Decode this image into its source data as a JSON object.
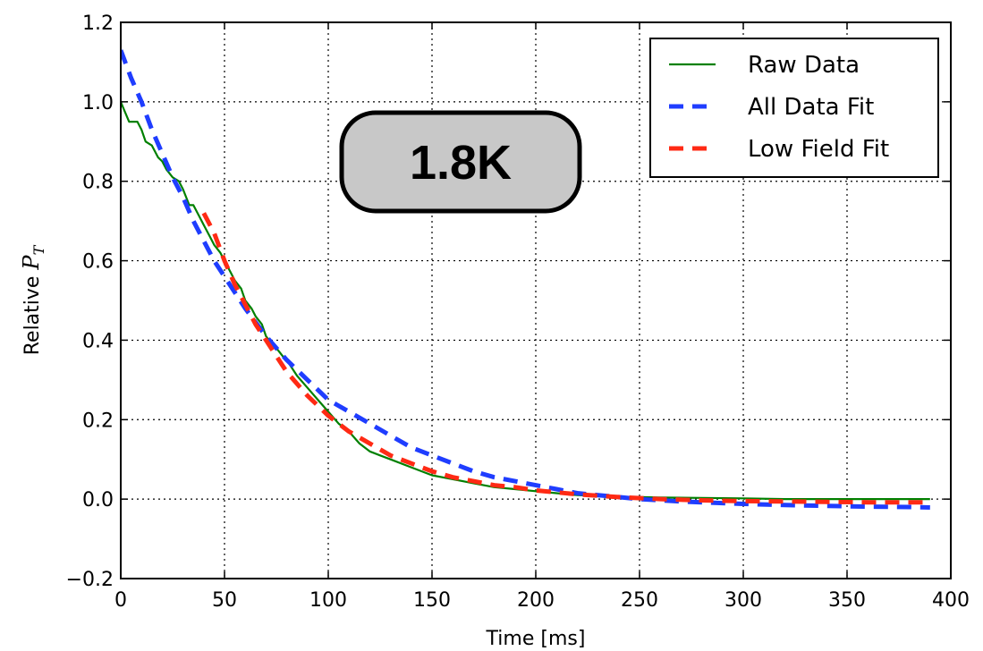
{
  "chart_data": {
    "type": "line",
    "title": "",
    "xlabel": "Time [ms]",
    "ylabel": "Relative P_T",
    "ylabel_parts": {
      "prefix": "Relative ",
      "symbol": "P",
      "subscript": "T"
    },
    "xlim": [
      0,
      400
    ],
    "ylim": [
      -0.2,
      1.2
    ],
    "x_ticks": [
      0,
      50,
      100,
      150,
      200,
      250,
      300,
      350,
      400
    ],
    "x_tick_labels": [
      "0",
      "50",
      "100",
      "150",
      "200",
      "250",
      "300",
      "350",
      "400"
    ],
    "y_ticks": [
      -0.2,
      0.0,
      0.2,
      0.4,
      0.6,
      0.8,
      1.0,
      1.2
    ],
    "y_tick_labels": [
      "−0.2",
      "0.0",
      "0.2",
      "0.4",
      "0.6",
      "0.8",
      "1.0",
      "1.2"
    ],
    "grid": true,
    "legend_position": "top-right",
    "annotation": "1.8K",
    "series": [
      {
        "name": "Raw Data",
        "color": "#008000",
        "style": "solid",
        "x": [
          0,
          4,
          6,
          8,
          10,
          12,
          15,
          18,
          20,
          22,
          25,
          28,
          30,
          33,
          35,
          38,
          40,
          43,
          45,
          48,
          50,
          53,
          55,
          58,
          60,
          63,
          65,
          68,
          70,
          73,
          75,
          78,
          80,
          85,
          90,
          95,
          100,
          105,
          110,
          115,
          120,
          125,
          130,
          140,
          150,
          160,
          170,
          180,
          190,
          200,
          210,
          220,
          230,
          240,
          250,
          260,
          280,
          300,
          320,
          340,
          360,
          380,
          390
        ],
        "y": [
          1.0,
          0.95,
          0.95,
          0.95,
          0.93,
          0.9,
          0.89,
          0.86,
          0.85,
          0.83,
          0.81,
          0.8,
          0.78,
          0.74,
          0.74,
          0.71,
          0.69,
          0.66,
          0.64,
          0.62,
          0.6,
          0.57,
          0.55,
          0.53,
          0.5,
          0.48,
          0.46,
          0.44,
          0.41,
          0.39,
          0.38,
          0.36,
          0.35,
          0.31,
          0.28,
          0.25,
          0.22,
          0.19,
          0.17,
          0.14,
          0.12,
          0.11,
          0.1,
          0.08,
          0.06,
          0.05,
          0.04,
          0.03,
          0.025,
          0.02,
          0.015,
          0.01,
          0.008,
          0.006,
          0.005,
          0.004,
          0.003,
          0.002,
          0.0,
          0.0,
          0.0,
          0.0,
          0.0
        ]
      },
      {
        "name": "All Data Fit",
        "color": "#1f3dff",
        "style": "dashed",
        "x": [
          0,
          5,
          10,
          15,
          20,
          25,
          30,
          35,
          40,
          45,
          50,
          60,
          70,
          80,
          90,
          100,
          110,
          120,
          130,
          140,
          150,
          160,
          170,
          180,
          190,
          200,
          210,
          220,
          230,
          240,
          250,
          260,
          270,
          280,
          290,
          300,
          320,
          340,
          360,
          380,
          390
        ],
        "y": [
          1.13,
          1.06,
          1.0,
          0.93,
          0.87,
          0.81,
          0.76,
          0.7,
          0.65,
          0.6,
          0.56,
          0.48,
          0.41,
          0.35,
          0.3,
          0.25,
          0.22,
          0.19,
          0.16,
          0.13,
          0.11,
          0.09,
          0.07,
          0.055,
          0.045,
          0.035,
          0.025,
          0.015,
          0.01,
          0.005,
          0.0,
          -0.003,
          -0.006,
          -0.008,
          -0.01,
          -0.012,
          -0.015,
          -0.017,
          -0.019,
          -0.02,
          -0.021
        ]
      },
      {
        "name": "Low Field Fit",
        "color": "#ff2a14",
        "style": "dashed",
        "x": [
          40,
          45,
          50,
          55,
          60,
          65,
          70,
          75,
          80,
          90,
          100,
          110,
          120,
          130,
          140,
          150,
          160,
          170,
          180,
          190,
          200,
          220,
          240,
          260,
          280,
          300,
          320,
          340,
          360,
          380,
          390
        ],
        "y": [
          0.72,
          0.67,
          0.6,
          0.54,
          0.49,
          0.44,
          0.4,
          0.36,
          0.32,
          0.26,
          0.21,
          0.17,
          0.14,
          0.11,
          0.09,
          0.07,
          0.055,
          0.045,
          0.035,
          0.03,
          0.022,
          0.012,
          0.005,
          0.0,
          -0.003,
          -0.005,
          -0.006,
          -0.007,
          -0.008,
          -0.008,
          -0.008
        ]
      }
    ]
  }
}
